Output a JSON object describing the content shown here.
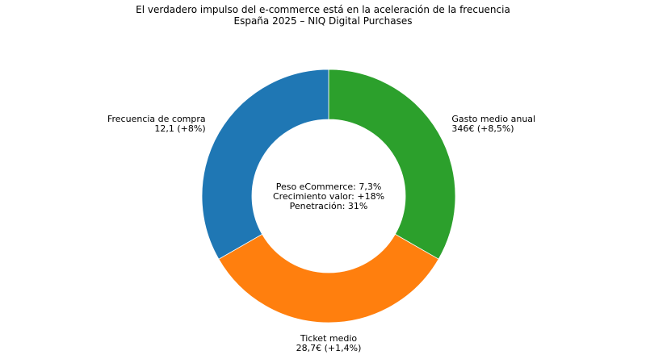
{
  "chart_data": {
    "type": "pie",
    "variant": "donut",
    "title": "El verdadero impulso del e-commerce está en la aceleración de la frecuencia",
    "subtitle": "España 2025 – NIQ Digital Purchases",
    "slices": [
      {
        "label": "Gasto medio anual",
        "value_label": "346€ (+8,5%)",
        "share": 0.333,
        "color": "#2ca02c"
      },
      {
        "label": "Ticket medio",
        "value_label": "28,7€ (+1,4%)",
        "share": 0.334,
        "color": "#ff7f0e"
      },
      {
        "label": "Frecuencia de compra",
        "value_label": "12,1 (+8%)",
        "share": 0.333,
        "color": "#1f77b4"
      }
    ],
    "center_text": [
      "Peso eCommerce: 7,3%",
      "Crecimiento valor: +18%",
      "Penetración: 31%"
    ]
  }
}
